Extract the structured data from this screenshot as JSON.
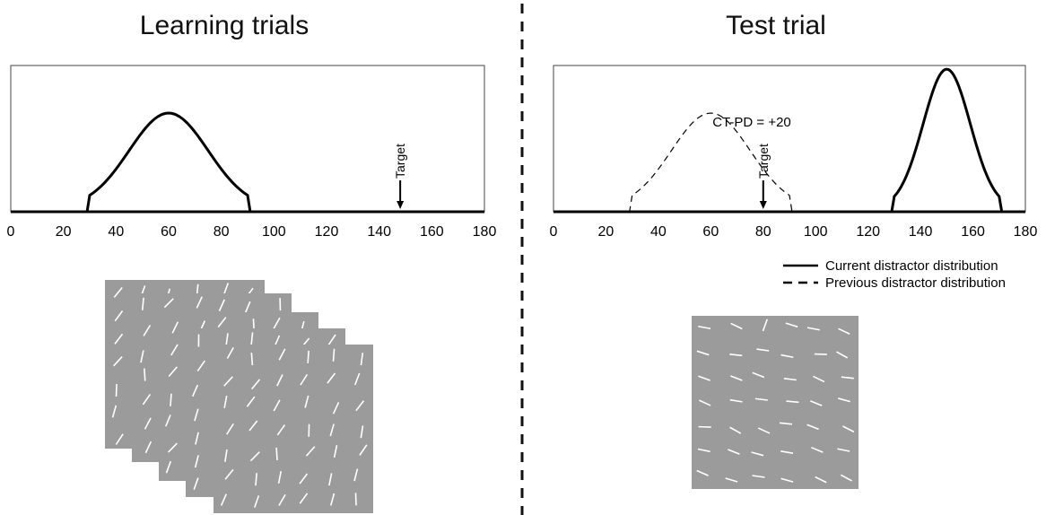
{
  "left_panel": {
    "title": "Learning trials",
    "target_label": "Target",
    "target_x": 148
  },
  "right_panel": {
    "title": "Test trial",
    "annotation": "CT-PD = +20",
    "target_label": "Target",
    "target_x": 80,
    "legend": {
      "current": "Current distractor distribution",
      "previous": "Previous distractor distribution"
    }
  },
  "axis": {
    "ticks": [
      "0",
      "20",
      "40",
      "60",
      "80",
      "100",
      "120",
      "140",
      "160",
      "180"
    ]
  },
  "chart_data": [
    {
      "type": "line",
      "panel": "Learning trials",
      "xlim": [
        0,
        180
      ],
      "series": [
        {
          "style": "solid",
          "shape": "truncated-gaussian",
          "center": 60,
          "range": [
            30,
            90
          ],
          "peak": 0.65
        }
      ],
      "annotations": [
        {
          "text": "Target",
          "x": 148
        }
      ]
    },
    {
      "type": "line",
      "panel": "Test trial",
      "xlim": [
        0,
        180
      ],
      "series": [
        {
          "name": "Current distractor distribution",
          "style": "solid",
          "shape": "truncated-gaussian",
          "center": 150,
          "range": [
            130,
            170
          ],
          "peak": 0.95
        },
        {
          "name": "Previous distractor distribution",
          "style": "dashed",
          "shape": "truncated-gaussian",
          "center": 60,
          "range": [
            30,
            90
          ],
          "peak": 0.65
        }
      ],
      "annotations": [
        {
          "text": "Target",
          "x": 80
        },
        {
          "text": "CT-PD = +20"
        }
      ]
    }
  ],
  "colors": {
    "stimulus_bg": "#9b9b9b",
    "line_elements": "#ffffff",
    "axis": "#000000"
  }
}
